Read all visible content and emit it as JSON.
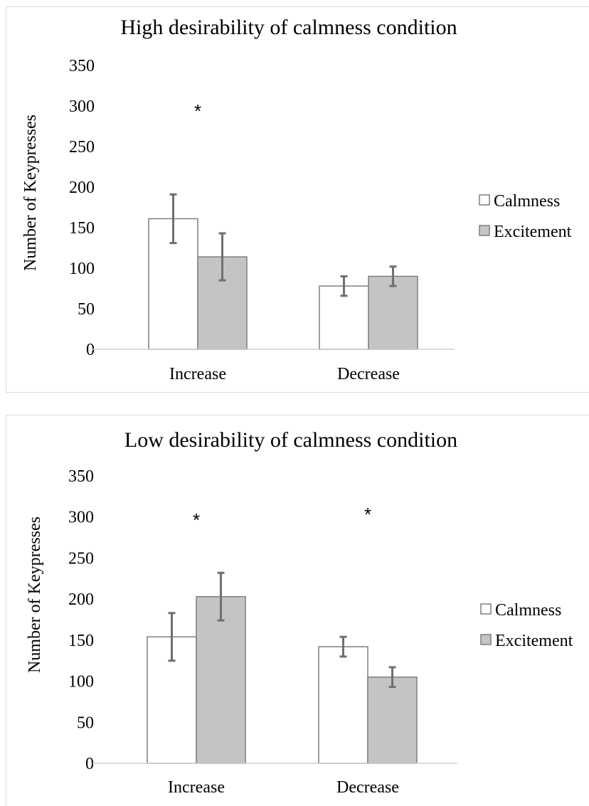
{
  "chart_data": [
    {
      "type": "bar",
      "title": "High desirability of calmness condition",
      "xlabel": "",
      "ylabel": "Number of Keypresses",
      "ylim": [
        0,
        350
      ],
      "yticks": [
        0,
        50,
        100,
        150,
        200,
        250,
        300,
        350
      ],
      "categories": [
        "Increase",
        "Decrease"
      ],
      "series": [
        {
          "name": "Calmness",
          "color": "#ffffff",
          "values": [
            161,
            78
          ],
          "error": [
            30,
            12
          ]
        },
        {
          "name": "Excitement",
          "color": "#c4c4c4",
          "values": [
            114,
            90
          ],
          "error": [
            29,
            12
          ]
        }
      ],
      "annotations": [
        {
          "text": "*",
          "category": "Increase"
        }
      ],
      "legend_position": "right",
      "grid": false
    },
    {
      "type": "bar",
      "title": "Low desirability of calmness condition",
      "xlabel": "",
      "ylabel": "Number of Keypresses",
      "ylim": [
        0,
        350
      ],
      "yticks": [
        0,
        50,
        100,
        150,
        200,
        250,
        300,
        350
      ],
      "categories": [
        "Increase",
        "Decrease"
      ],
      "series": [
        {
          "name": "Calmness",
          "color": "#ffffff",
          "values": [
            154,
            142
          ],
          "error": [
            29,
            12
          ]
        },
        {
          "name": "Excitement",
          "color": "#c4c4c4",
          "values": [
            203,
            105
          ],
          "error": [
            29,
            12
          ]
        }
      ],
      "annotations": [
        {
          "text": "*",
          "category": "Increase"
        },
        {
          "text": "*",
          "category": "Decrease"
        }
      ],
      "legend_position": "right",
      "grid": false
    }
  ]
}
